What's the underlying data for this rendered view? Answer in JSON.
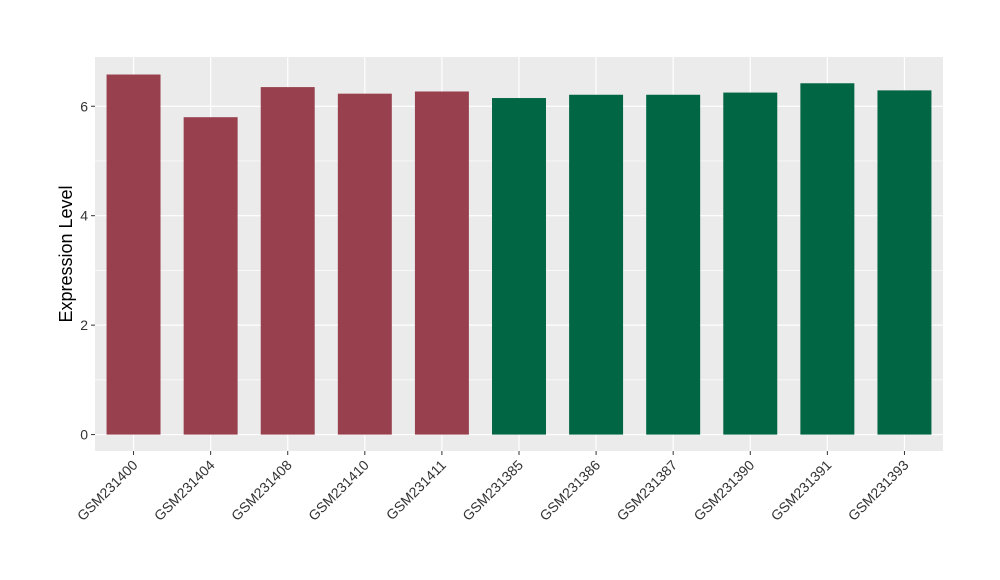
{
  "chart_data": {
    "type": "bar",
    "title": "",
    "xlabel": "",
    "ylabel": "Expression Level",
    "categories": [
      "GSM231400",
      "GSM231404",
      "GSM231408",
      "GSM231410",
      "GSM231411",
      "GSM231385",
      "GSM231386",
      "GSM231387",
      "GSM231390",
      "GSM231391",
      "GSM231393"
    ],
    "values": [
      6.58,
      5.8,
      6.35,
      6.23,
      6.27,
      6.15,
      6.21,
      6.21,
      6.25,
      6.42,
      6.29
    ],
    "bar_colors": [
      "#99404E",
      "#99404E",
      "#99404E",
      "#99404E",
      "#99404E",
      "#006643",
      "#006643",
      "#006643",
      "#006643",
      "#006643",
      "#006643"
    ],
    "ylim": [
      -0.3,
      6.9
    ],
    "yticks": [
      0,
      2,
      4,
      6
    ],
    "grid": true,
    "legend": "none",
    "panel_background": "#EBEBEB",
    "grid_color": "#FFFFFF"
  }
}
